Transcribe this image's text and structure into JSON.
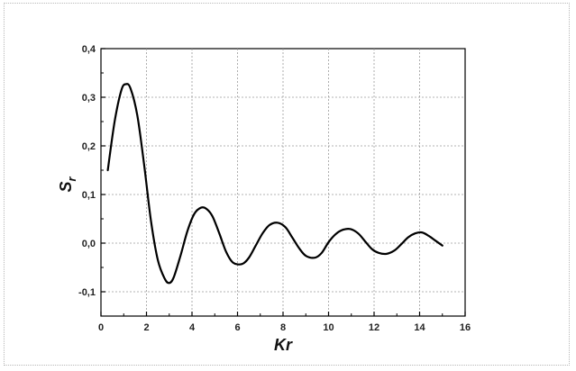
{
  "chart_data": {
    "type": "line",
    "title": "",
    "xlabel": "Kr",
    "ylabel": "S",
    "ylabel_subscript": "r",
    "xlim": [
      0,
      16
    ],
    "ylim": [
      -0.15,
      0.4
    ],
    "x_ticks": [
      0,
      2,
      4,
      6,
      8,
      10,
      12,
      14,
      16
    ],
    "x_tick_labels": [
      "0",
      "2",
      "4",
      "6",
      "8",
      "10",
      "12",
      "14",
      "16"
    ],
    "y_ticks": [
      -0.1,
      0.0,
      0.1,
      0.2,
      0.3,
      0.4
    ],
    "y_tick_labels": [
      "-0,1",
      "0,0",
      "0,1",
      "0,2",
      "0,3",
      "0,4"
    ],
    "grid": true,
    "legend": "none",
    "series": [
      {
        "color": "#000000",
        "x": [
          0.3,
          0.6,
          0.9,
          1.1,
          1.3,
          1.6,
          1.9,
          2.2,
          2.5,
          2.8,
          3.0,
          3.2,
          3.5,
          3.8,
          4.1,
          4.4,
          4.65,
          4.9,
          5.2,
          5.5,
          5.8,
          6.2,
          6.5,
          6.8,
          7.1,
          7.4,
          7.75,
          8.1,
          8.4,
          8.7,
          9.0,
          9.4,
          9.7,
          10.0,
          10.3,
          10.6,
          10.95,
          11.3,
          11.6,
          11.9,
          12.2,
          12.55,
          12.9,
          13.2,
          13.5,
          13.8,
          14.1,
          14.4,
          14.7,
          15.0
        ],
        "y": [
          0.15,
          0.25,
          0.315,
          0.327,
          0.318,
          0.262,
          0.16,
          0.045,
          -0.035,
          -0.073,
          -0.082,
          -0.07,
          -0.025,
          0.025,
          0.06,
          0.073,
          0.07,
          0.055,
          0.02,
          -0.018,
          -0.04,
          -0.043,
          -0.03,
          -0.005,
          0.02,
          0.037,
          0.042,
          0.033,
          0.012,
          -0.01,
          -0.026,
          -0.03,
          -0.02,
          0.002,
          0.018,
          0.027,
          0.029,
          0.02,
          0.004,
          -0.012,
          -0.02,
          -0.022,
          -0.015,
          -0.002,
          0.012,
          0.02,
          0.022,
          0.015,
          0.005,
          -0.005
        ]
      }
    ]
  }
}
